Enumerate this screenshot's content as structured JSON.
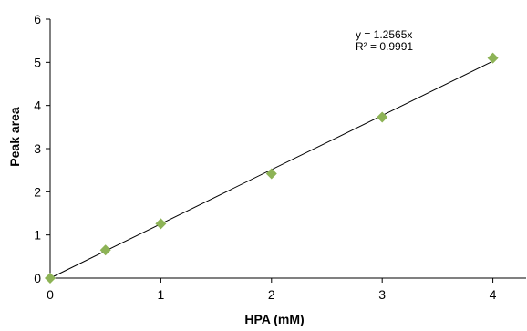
{
  "chart_data": {
    "type": "scatter",
    "title": "",
    "xlabel": "HPA (mM)",
    "ylabel": "Peak area",
    "xlim": [
      0,
      4.3
    ],
    "ylim": [
      0,
      6
    ],
    "x_ticks": [
      0,
      1,
      2,
      3,
      4
    ],
    "y_ticks": [
      0,
      1,
      2,
      3,
      4,
      5,
      6
    ],
    "grid": false,
    "legend": "none",
    "series": [
      {
        "marker": "diamond",
        "color": "#8DB356",
        "x": [
          0,
          0.5,
          1,
          2,
          3,
          4
        ],
        "y": [
          0,
          0.65,
          1.26,
          2.42,
          3.73,
          5.1
        ]
      }
    ],
    "trendline": {
      "type": "linear",
      "slope": 1.2565,
      "intercept": 0,
      "x_range": [
        0,
        4
      ],
      "color": "#000000",
      "equation_label": "y = 1.2565x",
      "r2_label": "R² = 0.9991"
    },
    "axis_color": "#000000"
  }
}
